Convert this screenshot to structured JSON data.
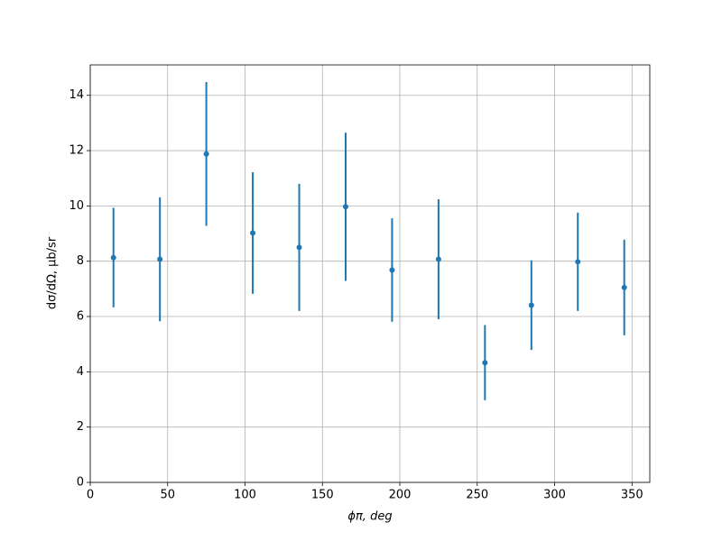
{
  "chart_data": {
    "type": "errorbar",
    "xlabel": "ϕπ, deg",
    "ylabel": "dσ/dΩ, μb/sr",
    "x": [
      15,
      45,
      75,
      105,
      135,
      165,
      195,
      225,
      255,
      285,
      315,
      345
    ],
    "series": [
      {
        "color": "#1f77b4",
        "values": [
          8.13,
          8.07,
          11.88,
          9.02,
          8.5,
          9.97,
          7.68,
          8.07,
          4.33,
          6.41,
          7.98,
          7.05
        ],
        "errors": [
          1.8,
          2.24,
          2.6,
          2.2,
          2.3,
          2.68,
          1.87,
          2.17,
          1.36,
          1.62,
          1.78,
          1.73
        ]
      }
    ],
    "xlim": [
      0,
      361.5
    ],
    "ylim": [
      0,
      15.1
    ],
    "xticks": [
      0,
      50,
      100,
      150,
      200,
      250,
      300,
      350
    ],
    "yticks": [
      0,
      2,
      4,
      6,
      8,
      10,
      12,
      14
    ],
    "grid": true
  }
}
